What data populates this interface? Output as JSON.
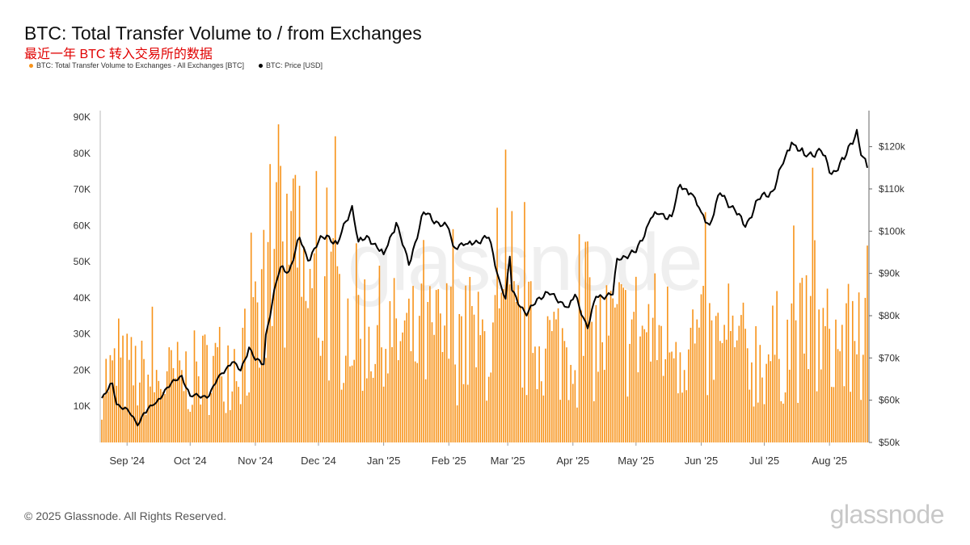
{
  "header": {
    "title": "BTC: Total Transfer Volume to / from Exchanges",
    "subtitle": "最近一年 BTC 转入交易所的数据"
  },
  "footer": {
    "copyright": "© 2025 Glassnode. All Rights Reserved.",
    "brand": "glassnode"
  },
  "watermark": "glassnode",
  "colors": {
    "bars": "#f7931a",
    "price": "#000000",
    "axis": "#999999"
  },
  "chart_data": {
    "type": "bar",
    "legend": [
      {
        "name": "BTC: Total Transfer Volume to Exchanges - All Exchanges [BTC]",
        "color": "#f7931a"
      },
      {
        "name": "BTC: Price [USD]",
        "color": "#000000"
      }
    ],
    "x_range": [
      "2024-08-20",
      "2025-08-19"
    ],
    "x_tick_labels": [
      {
        "label": "Sep '24",
        "date": "2024-09-01"
      },
      {
        "label": "Oct '24",
        "date": "2024-10-01"
      },
      {
        "label": "Nov '24",
        "date": "2024-11-01"
      },
      {
        "label": "Dec '24",
        "date": "2024-12-01"
      },
      {
        "label": "Jan '25",
        "date": "2025-01-01"
      },
      {
        "label": "Feb '25",
        "date": "2025-02-01"
      },
      {
        "label": "Mar '25",
        "date": "2025-03-01"
      },
      {
        "label": "Apr '25",
        "date": "2025-04-01"
      },
      {
        "label": "May '25",
        "date": "2025-05-01"
      },
      {
        "label": "Jun '25",
        "date": "2025-06-01"
      },
      {
        "label": "Jul '25",
        "date": "2025-07-01"
      },
      {
        "label": "Aug '25",
        "date": "2025-08-01"
      }
    ],
    "y_left": {
      "range": [
        0,
        90000
      ],
      "tick_values": [
        10000,
        20000,
        30000,
        40000,
        50000,
        60000,
        70000,
        80000,
        90000
      ],
      "tick_labels": [
        "10K",
        "20K",
        "30K",
        "40K",
        "50K",
        "60K",
        "70K",
        "80K",
        "90K"
      ]
    },
    "y_right": {
      "range": [
        50000,
        127000
      ],
      "tick_values": [
        50000,
        60000,
        70000,
        80000,
        90000,
        100000,
        110000,
        120000
      ],
      "tick_labels": [
        "$50k",
        "$60k",
        "$70k",
        "$80k",
        "$90k",
        "$100k",
        "$110k",
        "$120k"
      ]
    },
    "volume_series": {
      "name": "BTC: Total Transfer Volume to Exchanges - All Exchanges [BTC]",
      "note": "daily bars, approximated",
      "anchor_dates": [
        "2024-08-20",
        "2024-09-01",
        "2024-09-15",
        "2024-10-01",
        "2024-10-15",
        "2024-11-01",
        "2024-11-07",
        "2024-11-12",
        "2024-11-20",
        "2024-12-01",
        "2024-12-15",
        "2025-01-01",
        "2025-01-15",
        "2025-02-01",
        "2025-02-15",
        "2025-03-01",
        "2025-03-15",
        "2025-04-01",
        "2025-04-15",
        "2025-05-01",
        "2025-05-15",
        "2025-06-01",
        "2025-06-15",
        "2025-07-01",
        "2025-07-15",
        "2025-08-01",
        "2025-08-19"
      ],
      "anchor_levels": [
        18000,
        20000,
        17000,
        19000,
        22000,
        28000,
        38000,
        45000,
        42000,
        40000,
        36000,
        30000,
        28000,
        30000,
        27000,
        32000,
        28000,
        27000,
        30000,
        32000,
        30000,
        28000,
        25000,
        24000,
        30000,
        28000,
        27000
      ],
      "spikes": [
        {
          "date": "2024-11-05",
          "value": 58800
        },
        {
          "date": "2024-11-08",
          "value": 77000
        },
        {
          "date": "2024-11-11",
          "value": 72000
        },
        {
          "date": "2024-11-12",
          "value": 88000
        },
        {
          "date": "2024-11-13",
          "value": 76500
        },
        {
          "date": "2024-11-19",
          "value": 73000
        },
        {
          "date": "2024-11-20",
          "value": 74000
        },
        {
          "date": "2024-11-22",
          "value": 71000
        },
        {
          "date": "2024-12-05",
          "value": 70500
        },
        {
          "date": "2025-01-20",
          "value": 56000
        },
        {
          "date": "2025-02-03",
          "value": 59000
        },
        {
          "date": "2025-02-28",
          "value": 81000
        },
        {
          "date": "2025-03-03",
          "value": 64000
        },
        {
          "date": "2025-04-07",
          "value": 55500
        },
        {
          "date": "2025-07-15",
          "value": 60000
        },
        {
          "date": "2025-07-24",
          "value": 76000
        },
        {
          "date": "2025-08-15",
          "value": 41500
        },
        {
          "date": "2025-08-18",
          "value": 40000
        }
      ]
    },
    "price_series": {
      "name": "BTC: Price [USD]",
      "dates": [
        "2024-08-20",
        "2024-08-25",
        "2024-08-27",
        "2024-09-01",
        "2024-09-06",
        "2024-09-09",
        "2024-09-15",
        "2024-09-20",
        "2024-09-27",
        "2024-10-01",
        "2024-10-10",
        "2024-10-15",
        "2024-10-21",
        "2024-10-25",
        "2024-10-29",
        "2024-11-01",
        "2024-11-05",
        "2024-11-06",
        "2024-11-11",
        "2024-11-13",
        "2024-11-17",
        "2024-11-22",
        "2024-11-26",
        "2024-12-01",
        "2024-12-05",
        "2024-12-10",
        "2024-12-17",
        "2024-12-20",
        "2024-12-25",
        "2025-01-01",
        "2025-01-07",
        "2025-01-13",
        "2025-01-20",
        "2025-01-27",
        "2025-02-01",
        "2025-02-03",
        "2025-02-10",
        "2025-02-20",
        "2025-02-25",
        "2025-02-28",
        "2025-03-02",
        "2025-03-03",
        "2025-03-10",
        "2025-03-15",
        "2025-03-20",
        "2025-03-30",
        "2025-04-02",
        "2025-04-08",
        "2025-04-12",
        "2025-04-20",
        "2025-04-22",
        "2025-05-01",
        "2025-05-08",
        "2025-05-12",
        "2025-05-18",
        "2025-05-22",
        "2025-05-27",
        "2025-06-01",
        "2025-06-05",
        "2025-06-10",
        "2025-06-17",
        "2025-06-22",
        "2025-06-28",
        "2025-07-05",
        "2025-07-10",
        "2025-07-14",
        "2025-07-20",
        "2025-07-28",
        "2025-08-02",
        "2025-08-08",
        "2025-08-14",
        "2025-08-16",
        "2025-08-19"
      ],
      "values": [
        60500,
        64000,
        59000,
        58000,
        54000,
        57000,
        59500,
        63000,
        65800,
        61000,
        61000,
        66000,
        69000,
        67000,
        72500,
        69500,
        68500,
        75500,
        88000,
        91500,
        90500,
        98500,
        93000,
        97500,
        99000,
        97000,
        106000,
        97500,
        98500,
        94500,
        102000,
        92000,
        104500,
        102000,
        100500,
        96500,
        97000,
        98500,
        88500,
        84000,
        94000,
        86000,
        80000,
        84000,
        85500,
        82000,
        85000,
        77000,
        84500,
        85000,
        93500,
        95000,
        103000,
        104000,
        103500,
        111000,
        109000,
        104500,
        101500,
        109000,
        105000,
        101000,
        107500,
        109500,
        116000,
        121000,
        118000,
        119000,
        113500,
        117000,
        124000,
        118000,
        115000
      ]
    }
  }
}
